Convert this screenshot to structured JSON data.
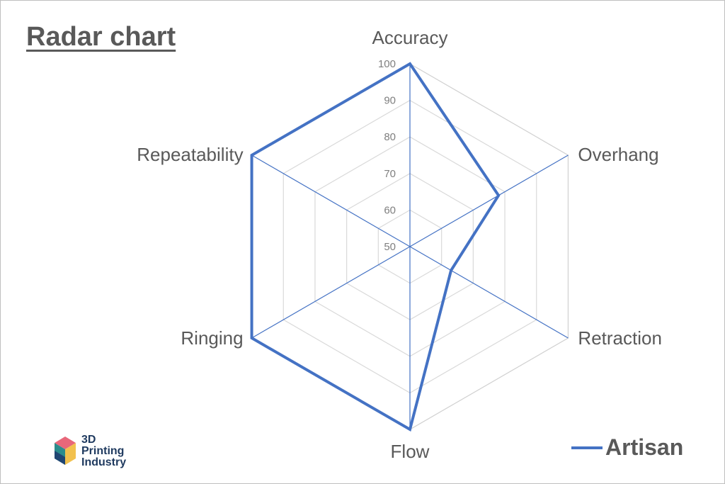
{
  "chart_data": {
    "type": "radar",
    "title": "Radar chart",
    "axes": [
      "Accuracy",
      "Overhang",
      "Retraction",
      "Flow",
      "Ringing",
      "Repeatability"
    ],
    "rlim": [
      50,
      100
    ],
    "ticks": [
      "50",
      "60",
      "70",
      "80",
      "90",
      "100"
    ],
    "tick_values": [
      50,
      60,
      70,
      80,
      90,
      100
    ],
    "grid": true,
    "legend_position": "bottom-right",
    "series": [
      {
        "name": "Artisan",
        "values": [
          100,
          78,
          63,
          100,
          100,
          100
        ],
        "color": "#4472c4"
      }
    ]
  },
  "logo": {
    "line1": "3D",
    "line2": "Printing",
    "line3": "Industry"
  }
}
